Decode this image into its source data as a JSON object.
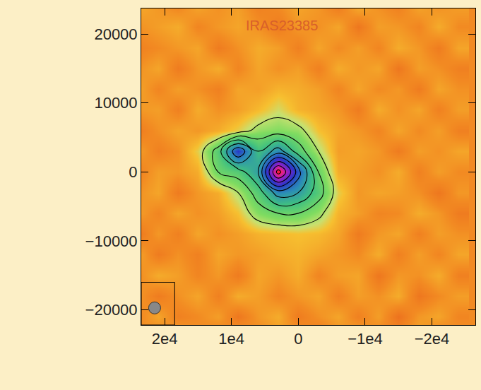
{
  "chart_data": {
    "type": "heatmap",
    "title": "IRAS23385",
    "x": [
      -24000,
      -21000,
      -18000,
      -15000,
      -12000,
      -9000,
      -6000,
      -3000,
      0,
      3000,
      6000,
      9000,
      12000,
      15000,
      18000,
      21000,
      24000
    ],
    "y": [
      -24000,
      -21000,
      -18000,
      -15000,
      -12000,
      -9000,
      -6000,
      -3000,
      0,
      3000,
      6000,
      9000,
      12000,
      15000,
      18000,
      21000,
      24000
    ],
    "z": [
      [
        0.02,
        -0.03,
        0.04,
        0.01,
        -0.02,
        0.05,
        0.0,
        -0.04,
        0.03,
        0.02,
        -0.01,
        0.04,
        -0.03,
        0.01,
        0.05,
        -0.02,
        0.03
      ],
      [
        -0.01,
        0.04,
        0.02,
        -0.05,
        0.03,
        -0.02,
        0.04,
        0.01,
        -0.03,
        0.05,
        0.02,
        -0.04,
        0.03,
        0.0,
        -0.02,
        0.04,
        -0.01
      ],
      [
        0.03,
        0.0,
        -0.04,
        0.05,
        0.01,
        0.03,
        -0.02,
        0.04,
        0.02,
        -0.01,
        0.03,
        0.05,
        -0.02,
        0.04,
        0.01,
        -0.03,
        0.02
      ],
      [
        -0.02,
        0.05,
        0.01,
        0.02,
        -0.04,
        0.04,
        0.03,
        -0.01,
        0.05,
        0.02,
        0.04,
        -0.03,
        0.02,
        -0.01,
        0.03,
        0.05,
        0.0
      ],
      [
        0.04,
        -0.01,
        0.03,
        -0.02,
        0.05,
        0.0,
        0.02,
        0.04,
        0.06,
        0.05,
        0.03,
        0.02,
        0.04,
        -0.02,
        0.01,
        -0.03,
        0.04
      ],
      [
        0.01,
        0.03,
        -0.02,
        0.04,
        0.02,
        -0.03,
        0.04,
        0.07,
        0.08,
        0.07,
        0.06,
        0.03,
        0.01,
        0.04,
        -0.02,
        0.02,
        -0.04
      ],
      [
        -0.03,
        0.02,
        0.05,
        0.0,
        -0.01,
        0.03,
        0.06,
        0.18,
        0.25,
        0.25,
        0.2,
        0.08,
        0.03,
        0.01,
        0.04,
        -0.01,
        0.03
      ],
      [
        0.02,
        -0.04,
        0.01,
        0.03,
        0.04,
        0.02,
        0.1,
        0.3,
        0.45,
        0.5,
        0.3,
        0.15,
        0.05,
        0.02,
        -0.03,
        0.04,
        0.01
      ],
      [
        0.0,
        0.03,
        -0.02,
        0.05,
        0.01,
        0.03,
        0.05,
        0.25,
        0.6,
        1.0,
        0.45,
        0.3,
        0.25,
        0.05,
        0.02,
        0.03,
        -0.02
      ],
      [
        0.04,
        0.01,
        0.03,
        -0.03,
        0.02,
        0.04,
        0.03,
        0.15,
        0.3,
        0.5,
        0.35,
        0.65,
        0.3,
        0.1,
        0.01,
        -0.02,
        0.03
      ],
      [
        -0.02,
        0.03,
        0.0,
        0.04,
        -0.01,
        0.02,
        0.04,
        0.08,
        0.18,
        0.2,
        0.18,
        0.1,
        0.05,
        0.02,
        0.04,
        0.01,
        -0.03
      ],
      [
        0.03,
        -0.02,
        0.04,
        0.01,
        0.05,
        -0.03,
        0.02,
        0.04,
        0.06,
        0.12,
        0.07,
        0.03,
        0.01,
        0.05,
        -0.02,
        0.03,
        0.02
      ],
      [
        0.01,
        0.04,
        -0.03,
        0.02,
        0.0,
        0.04,
        -0.01,
        0.03,
        0.05,
        0.06,
        0.03,
        0.04,
        -0.02,
        0.01,
        0.03,
        -0.01,
        0.04
      ],
      [
        -0.02,
        0.01,
        0.03,
        -0.04,
        0.04,
        0.02,
        0.05,
        -0.02,
        0.03,
        0.01,
        0.04,
        -0.01,
        0.05,
        0.02,
        -0.03,
        0.04,
        0.01
      ],
      [
        0.04,
        -0.03,
        0.02,
        0.05,
        -0.01,
        0.03,
        0.0,
        0.04,
        -0.02,
        0.03,
        0.05,
        0.01,
        -0.03,
        0.04,
        0.02,
        0.0,
        -0.02
      ],
      [
        0.0,
        0.05,
        -0.01,
        0.02,
        0.03,
        -0.04,
        0.04,
        0.01,
        0.02,
        -0.03,
        0.01,
        0.04,
        0.02,
        -0.01,
        0.05,
        0.03,
        0.01
      ],
      [
        0.03,
        0.01,
        0.04,
        -0.02,
        0.01,
        0.05,
        -0.03,
        0.02,
        0.04,
        0.0,
        -0.02,
        0.03,
        0.01,
        0.04,
        -0.01,
        0.02,
        0.05
      ]
    ],
    "zlim": [
      -0.1,
      1
    ],
    "contour_levels": {
      "start": 0.15,
      "end": 0.95,
      "step": 0.1
    },
    "xlim": [
      23500,
      -26500
    ],
    "ylim": [
      -22200,
      23700
    ],
    "xticks": [
      {
        "value": 20000,
        "label": "2e4"
      },
      {
        "value": 10000,
        "label": "1e4"
      },
      0,
      {
        "value": -10000,
        "label": "−1e4"
      },
      {
        "value": -20000,
        "label": "−2e4"
      }
    ],
    "yticks": [
      {
        "value": -20000,
        "label": "−20000"
      },
      {
        "value": -10000,
        "label": "−10000"
      },
      0,
      10000,
      20000
    ],
    "grid": false
  }
}
